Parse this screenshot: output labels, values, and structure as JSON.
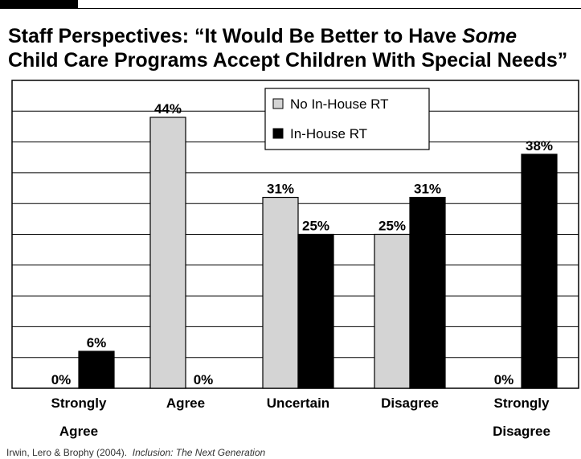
{
  "title": {
    "line1_prefix": "Staff Perspectives: “It Would Be Better to Have ",
    "line1_emphasis": "Some",
    "line2": "Child Care Programs Accept Children With Special Needs”"
  },
  "source": {
    "authors": "Irwin, Lero & Brophy (2004).",
    "work": "Inclusion: The Next Generation"
  },
  "chart_data": {
    "type": "bar",
    "categories": [
      [
        "Strongly",
        "Agree"
      ],
      [
        "Agree"
      ],
      [
        "Uncertain"
      ],
      [
        "Disagree"
      ],
      [
        "Strongly",
        "Disagree"
      ]
    ],
    "series": [
      {
        "name": "No In-House RT",
        "values": [
          0,
          44,
          31,
          25,
          0
        ],
        "color": "#d4d4d4"
      },
      {
        "name": "In-House RT",
        "values": [
          6,
          0,
          25,
          31,
          38
        ],
        "color": "#000000"
      }
    ],
    "value_suffix": "%",
    "ylim": [
      0,
      50
    ],
    "grid": true,
    "legend_position": "top-center"
  }
}
